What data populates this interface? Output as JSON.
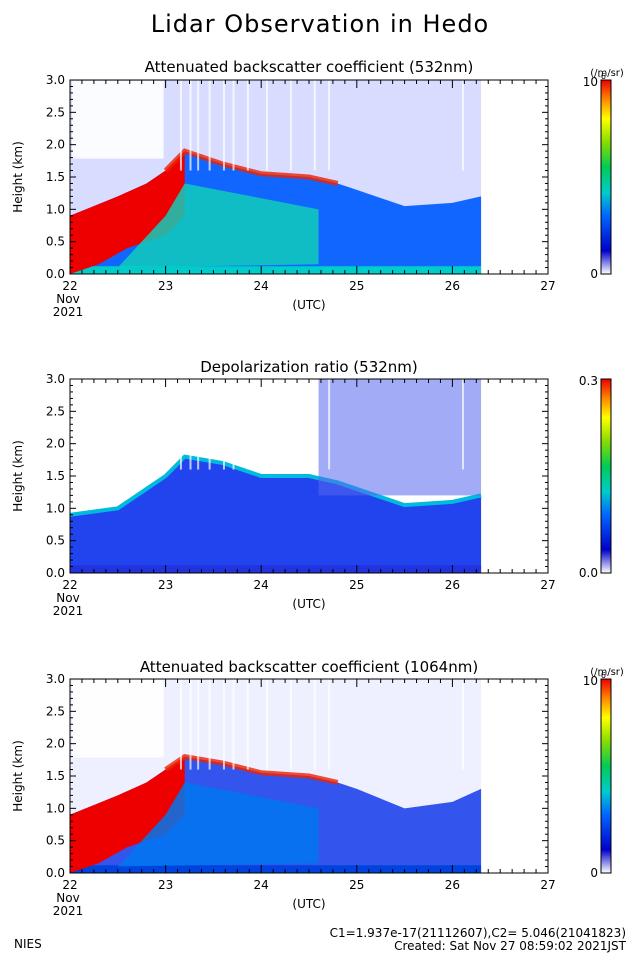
{
  "title": "Lidar Observation in Hedo",
  "footer": {
    "org": "NIES",
    "constants": "C1=1.937e-17(21112607),C2= 5.046(21041823)",
    "created": "Created: Sat Nov 27 08:59:02 2021JST"
  },
  "chart_data": [
    {
      "type": "heatmap",
      "title": "Attenuated backscatter coefficient (532nm)",
      "ylabel": "Height (km)",
      "xlabel": "(UTC)",
      "x_ticks": [
        "22",
        "23",
        "24",
        "25",
        "26",
        "27"
      ],
      "x_sub": [
        "Nov",
        "2021"
      ],
      "xlim": [
        22,
        27
      ],
      "y_ticks": [
        "0.0",
        "0.5",
        "1.0",
        "1.5",
        "2.0",
        "2.5",
        "3.0"
      ],
      "ylim": [
        0,
        3
      ],
      "data_end": 26.3,
      "colorbar": {
        "max_label": "10",
        "min_label": "0",
        "unit": "(/m/sr)",
        "exponent": "-6"
      },
      "cloud_top_km": [
        [
          22.0,
          0.9
        ],
        [
          22.5,
          1.2
        ],
        [
          22.8,
          1.4
        ],
        [
          23.0,
          1.6
        ],
        [
          23.2,
          1.9
        ],
        [
          23.6,
          1.7
        ],
        [
          24.0,
          1.55
        ],
        [
          24.5,
          1.5
        ],
        [
          24.8,
          1.4
        ],
        [
          25.0,
          1.3
        ],
        [
          25.5,
          1.05
        ],
        [
          26.0,
          1.1
        ],
        [
          26.3,
          1.2
        ]
      ],
      "variant": "bs532"
    },
    {
      "type": "heatmap",
      "title": "Depolarization ratio (532nm)",
      "ylabel": "Height (km)",
      "xlabel": "(UTC)",
      "x_ticks": [
        "22",
        "23",
        "24",
        "25",
        "26",
        "27"
      ],
      "x_sub": [
        "Nov",
        "2021"
      ],
      "xlim": [
        22,
        27
      ],
      "y_ticks": [
        "0.0",
        "0.5",
        "1.0",
        "1.5",
        "2.0",
        "2.5",
        "3.0"
      ],
      "ylim": [
        0,
        3
      ],
      "data_end": 26.3,
      "colorbar": {
        "max_label": "0.3",
        "min_label": "0.0",
        "unit": "",
        "exponent": ""
      },
      "cloud_top_km": [
        [
          22.0,
          0.9
        ],
        [
          22.5,
          1.0
        ],
        [
          22.8,
          1.3
        ],
        [
          23.0,
          1.5
        ],
        [
          23.2,
          1.8
        ],
        [
          23.6,
          1.7
        ],
        [
          24.0,
          1.5
        ],
        [
          24.5,
          1.5
        ],
        [
          24.8,
          1.4
        ],
        [
          25.0,
          1.3
        ],
        [
          25.5,
          1.05
        ],
        [
          26.0,
          1.1
        ],
        [
          26.3,
          1.2
        ]
      ],
      "variant": "depol"
    },
    {
      "type": "heatmap",
      "title": "Attenuated backscatter coefficient (1064nm)",
      "ylabel": "Height (km)",
      "xlabel": "(UTC)",
      "x_ticks": [
        "22",
        "23",
        "24",
        "25",
        "26",
        "27"
      ],
      "x_sub": [
        "Nov",
        "2021"
      ],
      "xlim": [
        22,
        27
      ],
      "y_ticks": [
        "0.0",
        "0.5",
        "1.0",
        "1.5",
        "2.0",
        "2.5",
        "3.0"
      ],
      "ylim": [
        0,
        3
      ],
      "data_end": 26.3,
      "colorbar": {
        "max_label": "10",
        "min_label": "0",
        "unit": "(/m/sr)",
        "exponent": "-6"
      },
      "cloud_top_km": [
        [
          22.0,
          0.9
        ],
        [
          22.5,
          1.2
        ],
        [
          22.8,
          1.4
        ],
        [
          23.0,
          1.6
        ],
        [
          23.2,
          1.8
        ],
        [
          23.6,
          1.7
        ],
        [
          24.0,
          1.55
        ],
        [
          24.5,
          1.5
        ],
        [
          24.8,
          1.4
        ],
        [
          25.0,
          1.3
        ],
        [
          25.5,
          1.0
        ],
        [
          26.0,
          1.1
        ],
        [
          26.3,
          1.3
        ]
      ],
      "variant": "bs1064"
    }
  ]
}
